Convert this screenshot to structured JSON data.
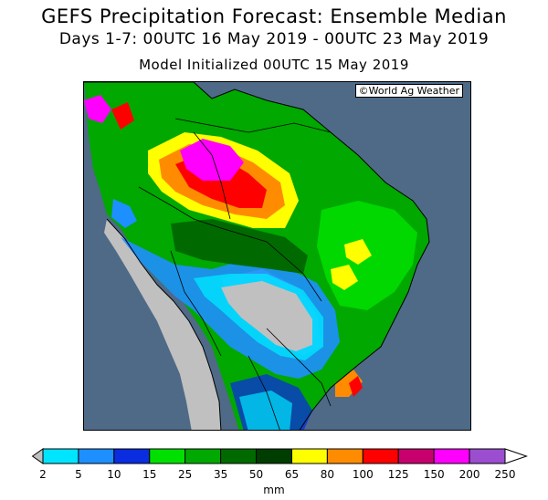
{
  "title": {
    "line1": "GEFS Precipitation Forecast: Ensemble Median",
    "line2": "Days 1-7: 00UTC 16 May 2019 - 00UTC 23 May 2019",
    "line3": "Model Initialized 00UTC 15 May 2019"
  },
  "map": {
    "credit": "©World Ag Weather",
    "ocean_color": "#4e6a87",
    "land_dry_color": "#c0c0c0",
    "region": "northern and central South America"
  },
  "legend": {
    "unit": "mm",
    "ticks": [
      "2",
      "5",
      "10",
      "15",
      "25",
      "35",
      "50",
      "65",
      "80",
      "100",
      "125",
      "150",
      "200",
      "250"
    ],
    "colors": [
      "#c0c0c0",
      "#00e5ff",
      "#1e8fff",
      "#0b2de0",
      "#00e000",
      "#00a800",
      "#006a00",
      "#003d00",
      "#ffff00",
      "#ff8c00",
      "#ff0000",
      "#c8006e",
      "#ff00ff",
      "#9b4fd0",
      "#ffffff"
    ]
  }
}
